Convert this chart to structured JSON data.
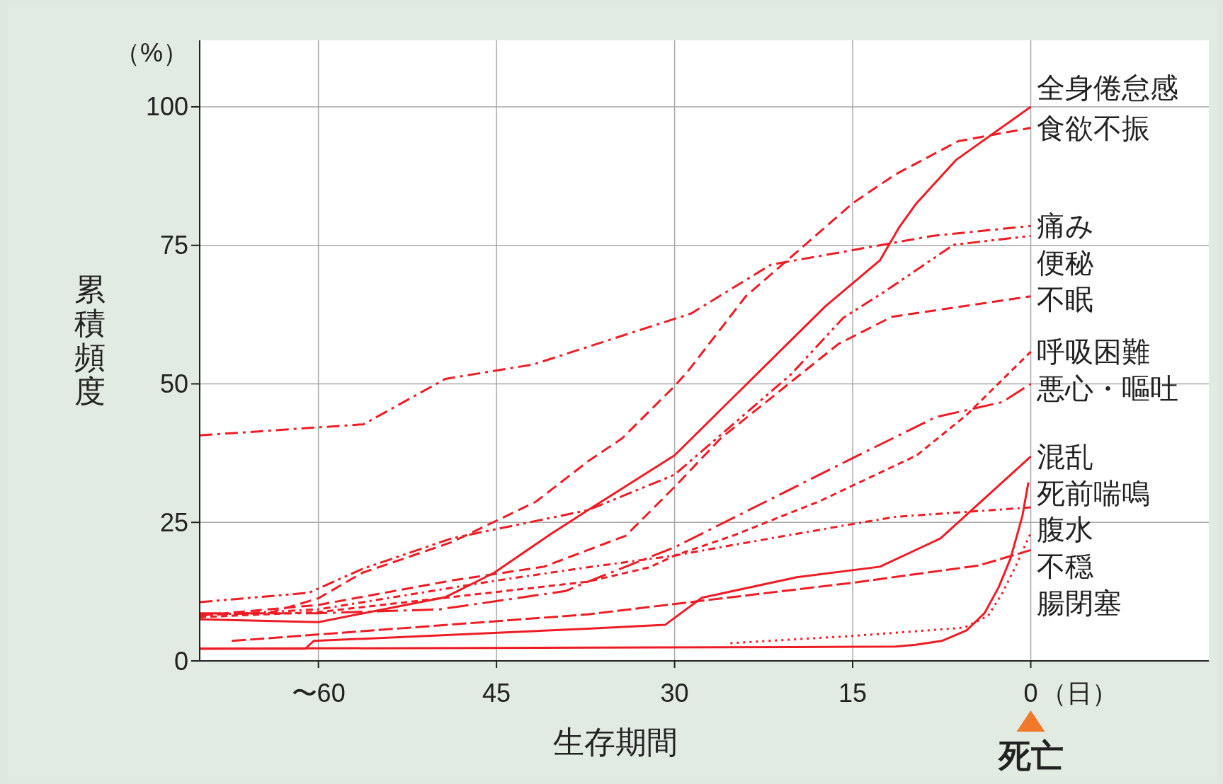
{
  "chart_data": {
    "type": "line",
    "xlabel": "生存期間",
    "ylabel": "累積頻度",
    "annotations": [
      "（%）",
      "（日）",
      "死亡"
    ],
    "xlim": [
      70,
      -15
    ],
    "ylim": [
      0,
      112
    ],
    "xticks": [
      {
        "value": 60,
        "label": "〜60"
      },
      45,
      30,
      15,
      0
    ],
    "yticks": [
      0,
      25,
      50,
      75,
      100
    ],
    "grid": true,
    "series": [
      {
        "name": "全身倦怠感",
        "color": "#ee1c25",
        "line_style": "solid",
        "x": [
          70,
          60,
          49.3,
          45.2,
          40.5,
          37.3,
          30,
          17.3,
          12.7,
          11.1,
          9.7,
          6.3,
          0
        ],
        "values": [
          7.5,
          7.0,
          11.5,
          15.9,
          22.8,
          27.2,
          37.1,
          64,
          72.3,
          78.2,
          82.4,
          90.4,
          100
        ]
      },
      {
        "name": "食欲不振",
        "color": "#ee1c25",
        "line_style": "dashed",
        "x": [
          70,
          64.2,
          60,
          56.3,
          48.8,
          41.7,
          37.3,
          34.4,
          30,
          28.8,
          24,
          19,
          15,
          11.4,
          6.1,
          0
        ],
        "values": [
          8.4,
          8.6,
          11.3,
          15.9,
          21.4,
          28.7,
          36,
          40.2,
          49.6,
          52.5,
          65.8,
          75.1,
          82.6,
          87.8,
          93.8,
          96.2
        ]
      },
      {
        "name": "痛み",
        "color": "#ee1c25",
        "line_style": "dashdot",
        "x": [
          70,
          56.2,
          49.3,
          41.9,
          28.6,
          21.9,
          8.3,
          0
        ],
        "values": [
          40.7,
          42.7,
          50.9,
          53.5,
          62.7,
          71.5,
          76.7,
          78.5
        ]
      },
      {
        "name": "便秘",
        "color": "#ee1c25",
        "line_style": "dashdotdot",
        "x": [
          70,
          60.8,
          56.3,
          48.8,
          37.3,
          30,
          20.2,
          15.8,
          12.2,
          6.5,
          0
        ],
        "values": [
          10.6,
          12.3,
          16.6,
          22.1,
          27.2,
          33.6,
          51.7,
          61.9,
          66.8,
          75.1,
          76.7
        ]
      },
      {
        "name": "不眠",
        "color": "#ee1c25",
        "line_style": "dashed",
        "x": [
          70,
          60,
          48.8,
          41,
          37.3,
          34.1,
          30,
          26.1,
          16.2,
          11.7,
          0
        ],
        "values": [
          8.2,
          10.1,
          14.5,
          17,
          20,
          22.6,
          31.4,
          40.2,
          57.2,
          62.1,
          65.8
        ]
      },
      {
        "name": "呼吸困難",
        "color": "#ee1c25",
        "line_style": "shortdash",
        "x": [
          70,
          60,
          37.3,
          32.1,
          30,
          25.1,
          17.8,
          9.6,
          5.4,
          0
        ],
        "values": [
          7.9,
          8.8,
          14.3,
          16.9,
          19,
          22.6,
          28.8,
          37.1,
          44.4,
          55.8
        ]
      },
      {
        "name": "悪心・嘔吐",
        "color": "#ee1c25",
        "line_style": "longdashdot",
        "x": [
          70,
          60,
          49.8,
          39.2,
          37.3,
          30,
          15,
          8,
          2.4,
          0
        ],
        "values": [
          8.6,
          8.6,
          9.3,
          12.6,
          14.3,
          20.5,
          36.6,
          44,
          46.7,
          50
        ]
      },
      {
        "name": "混乱",
        "color": "#ee1c25",
        "line_style": "solid",
        "x": [
          70,
          61.1,
          60.4,
          37.3,
          30.8,
          27.7,
          19.7,
          12.7,
          7.6,
          0
        ],
        "values": [
          2.2,
          2.2,
          3.6,
          5.8,
          6.5,
          11.4,
          15.1,
          17,
          22.1,
          36.9
        ]
      },
      {
        "name": "死前喘鳴",
        "color": "#ee1c25",
        "line_style": "solid",
        "x": [
          70,
          37.3,
          20,
          11.4,
          9.7,
          7.5,
          5.4,
          3.9,
          2.7,
          1.7,
          0.7,
          0.2
        ],
        "values": [
          2.2,
          2.4,
          2.5,
          2.6,
          2.9,
          3.6,
          5.5,
          8.6,
          13.3,
          18.5,
          26.2,
          32.2
        ]
      },
      {
        "name": "腹水",
        "color": "#ee1c25",
        "line_style": "dotdash",
        "x": [
          70,
          60,
          45,
          37.3,
          30,
          24.6,
          15,
          11.4,
          0
        ],
        "values": [
          8.2,
          9.3,
          14.5,
          16.9,
          19,
          21.1,
          24.7,
          26,
          27.7
        ]
      },
      {
        "name": "不穏",
        "color": "#ee1c25",
        "line_style": "dotted",
        "x": [
          25.3,
          15,
          5.6,
          3.6,
          2.4,
          1.2,
          0
        ],
        "values": [
          3.2,
          4.5,
          6.0,
          8.1,
          12.2,
          17.4,
          23.1
        ]
      },
      {
        "name": "腸閉塞",
        "color": "#ee1c25",
        "line_style": "longdash",
        "x": [
          67.3,
          37.3,
          15,
          4.4,
          0
        ],
        "values": [
          3.6,
          8.4,
          14.1,
          17.2,
          20
        ]
      }
    ]
  }
}
